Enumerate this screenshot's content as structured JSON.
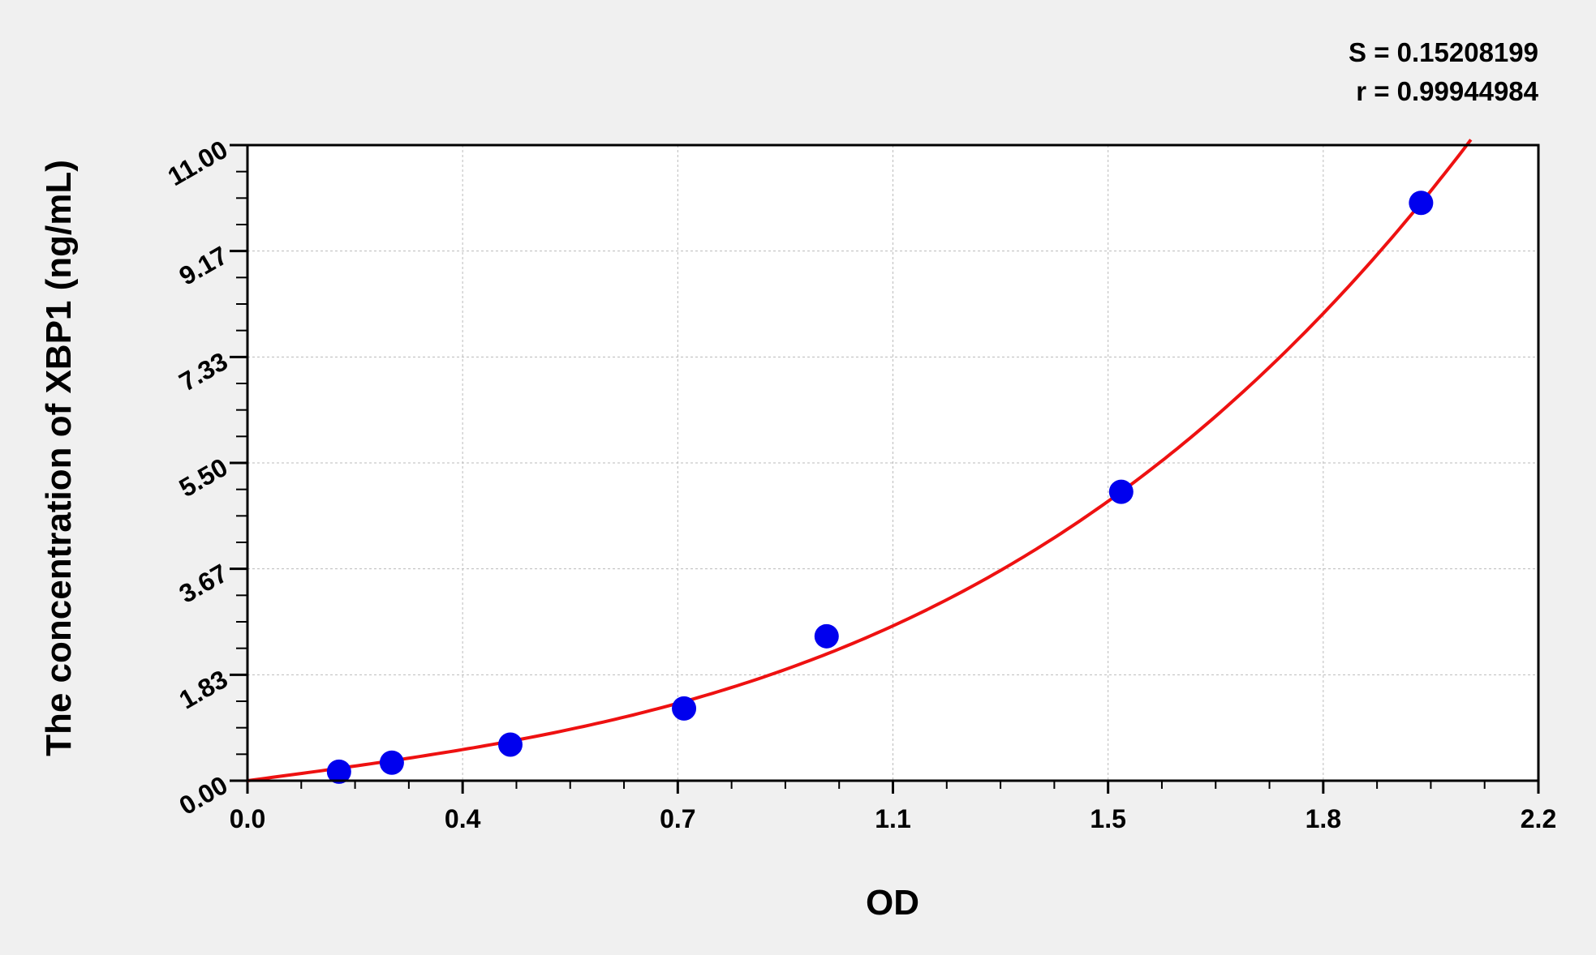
{
  "chart_data": {
    "type": "scatter",
    "title": "",
    "xlabel": "OD",
    "ylabel": "The concentration of XBP1 (ng/mL)",
    "xlim": [
      0,
      2.2
    ],
    "ylim": [
      0,
      11
    ],
    "x_tick_labels": [
      "0.0",
      "0.4",
      "0.7",
      "1.1",
      "1.5",
      "1.8",
      "2.2"
    ],
    "y_tick_labels": [
      "0.00",
      "1.83",
      "3.67",
      "5.50",
      "7.33",
      "9.17",
      "11.00"
    ],
    "grid": true,
    "stats": [
      "S = 0.15208199",
      "r = 0.99944984"
    ],
    "points": {
      "x": [
        0.156,
        0.246,
        0.448,
        0.744,
        0.987,
        1.489,
        2.0
      ],
      "y": [
        0.156,
        0.312,
        0.625,
        1.25,
        2.5,
        5,
        10
      ]
    },
    "fit_curve": {
      "type": "cubic",
      "coefficients": [
        0,
        1.364,
        -0.056,
        0.937
      ],
      "x_range": [
        0,
        2.085
      ]
    },
    "colors": {
      "points": "#0000ee",
      "curve": "#ee1111",
      "background": "#f0f0f0",
      "plot": "#ffffff"
    }
  }
}
